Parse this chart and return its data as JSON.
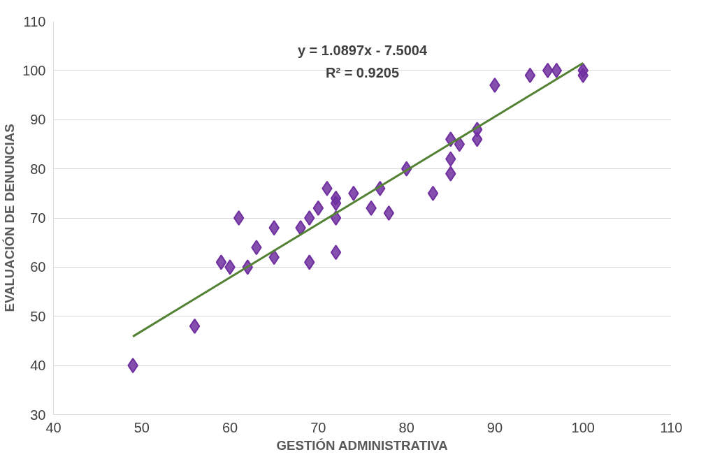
{
  "chart_data": {
    "type": "scatter",
    "xlabel": "GESTIÓN ADMINISTRATIVA",
    "ylabel": "EVALUACIÓN DE DENUNCIAS",
    "xlim": [
      40,
      110
    ],
    "xticks": [
      40,
      50,
      60,
      70,
      80,
      90,
      100,
      110
    ],
    "ylim": [
      30,
      110
    ],
    "yticks": [
      30,
      40,
      50,
      60,
      70,
      80,
      90,
      100,
      110
    ],
    "grid": "y",
    "annotations": [
      "y = 1.0897x - 7.5004",
      "R² = 0.9205"
    ],
    "series": [
      {
        "color": "#7030a0",
        "marker": "diamond",
        "x": [
          49,
          56,
          59,
          60,
          61,
          62,
          63,
          65,
          65,
          68,
          69,
          69,
          70,
          71,
          72,
          72,
          72,
          72,
          74,
          76,
          77,
          78,
          80,
          83,
          85,
          85,
          85,
          86,
          88,
          88,
          90,
          94,
          96,
          97,
          100,
          100
        ],
        "values": [
          40,
          48,
          61,
          60,
          70,
          60,
          64,
          68,
          62,
          68,
          70,
          61,
          72,
          76,
          74,
          73,
          70,
          63,
          75,
          72,
          76,
          71,
          80,
          75,
          86,
          82,
          79,
          85,
          88,
          86,
          97,
          99,
          100,
          100,
          100,
          99
        ]
      },
      {
        "type": "line",
        "color": "#548235",
        "x": [
          49,
          100
        ],
        "values": [
          45.9,
          101.5
        ]
      }
    ]
  }
}
